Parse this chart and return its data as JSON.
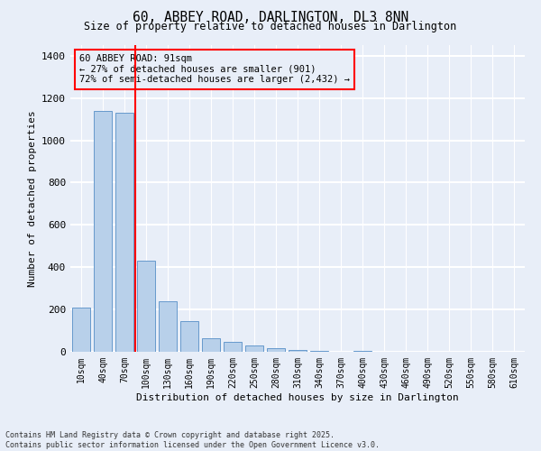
{
  "title": "60, ABBEY ROAD, DARLINGTON, DL3 8NN",
  "subtitle": "Size of property relative to detached houses in Darlington",
  "xlabel": "Distribution of detached houses by size in Darlington",
  "ylabel": "Number of detached properties",
  "categories": [
    "10sqm",
    "40sqm",
    "70sqm",
    "100sqm",
    "130sqm",
    "160sqm",
    "190sqm",
    "220sqm",
    "250sqm",
    "280sqm",
    "310sqm",
    "340sqm",
    "370sqm",
    "400sqm",
    "430sqm",
    "460sqm",
    "490sqm",
    "520sqm",
    "550sqm",
    "580sqm",
    "610sqm"
  ],
  "values": [
    210,
    1140,
    1130,
    430,
    238,
    145,
    65,
    47,
    30,
    18,
    10,
    5,
    0,
    5,
    0,
    0,
    0,
    0,
    0,
    0,
    0
  ],
  "bar_color": "#b8d0ea",
  "bar_edge_color": "#6699cc",
  "vline_color": "red",
  "vline_x_index": 2.5,
  "annotation_text": "60 ABBEY ROAD: 91sqm\n← 27% of detached houses are smaller (901)\n72% of semi-detached houses are larger (2,432) →",
  "annotation_box_edgecolor": "red",
  "ylim": [
    0,
    1450
  ],
  "yticks": [
    0,
    200,
    400,
    600,
    800,
    1000,
    1200,
    1400
  ],
  "background_color": "#e8eef8",
  "grid_color": "white",
  "footer_line1": "Contains HM Land Registry data © Crown copyright and database right 2025.",
  "footer_line2": "Contains public sector information licensed under the Open Government Licence v3.0."
}
